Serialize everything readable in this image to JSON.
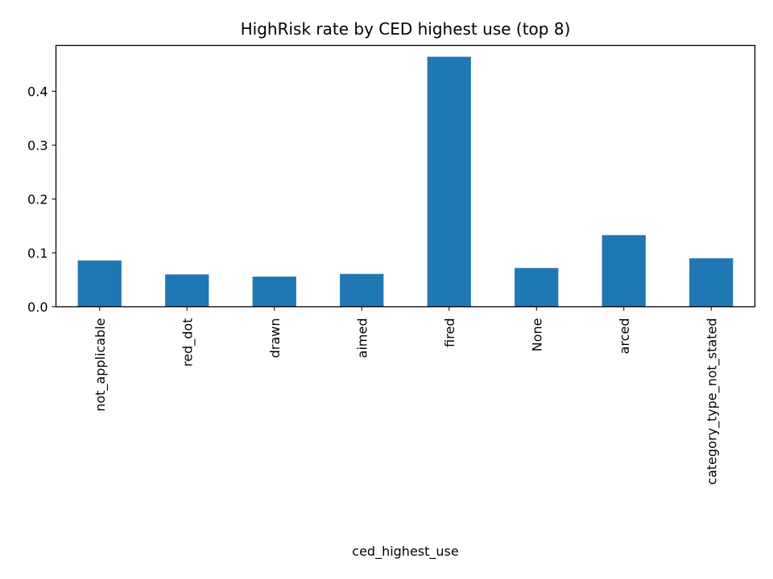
{
  "chart_data": {
    "type": "bar",
    "title": "HighRisk rate by CED highest use (top 8)",
    "xlabel": "ced_highest_use",
    "ylabel": "",
    "categories": [
      "not_applicable",
      "red_dot",
      "drawn",
      "aimed",
      "fired",
      "None",
      "arced",
      "category_type_not_stated"
    ],
    "values": [
      0.086,
      0.06,
      0.056,
      0.061,
      0.464,
      0.072,
      0.133,
      0.09
    ],
    "ylim": [
      0,
      0.485
    ],
    "yticks": [
      0.0,
      0.1,
      0.2,
      0.3,
      0.4
    ],
    "ytick_labels": [
      "0.0",
      "0.1",
      "0.2",
      "0.3",
      "0.4"
    ],
    "bar_color": "#1f77b4",
    "grid": false,
    "legend": "none"
  }
}
